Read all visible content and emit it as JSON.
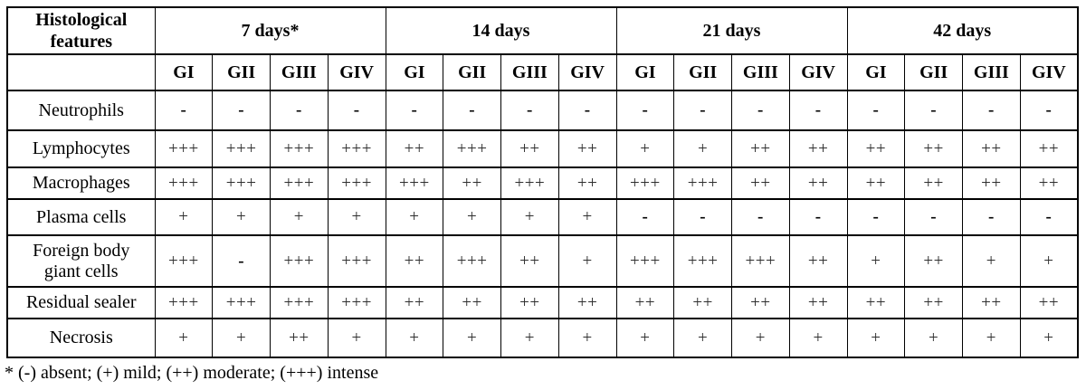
{
  "table": {
    "corner_header": "Histological features",
    "periods": [
      "7 days*",
      "14 days",
      "21 days",
      "42 days"
    ],
    "groups": [
      "GI",
      "GII",
      "GIII",
      "GIV"
    ],
    "rows": [
      {
        "feature": "Neutrophils",
        "values": [
          "-",
          "-",
          "-",
          "-",
          "-",
          "-",
          "-",
          "-",
          "-",
          "-",
          "-",
          "-",
          "-",
          "-",
          "-",
          "-"
        ]
      },
      {
        "feature": "Lymphocytes",
        "values": [
          "+++",
          "+++",
          "+++",
          "+++",
          "++",
          "+++",
          "++",
          "++",
          "+",
          "+",
          "++",
          "++",
          "++",
          "++",
          "++",
          "++"
        ]
      },
      {
        "feature": "Macrophages",
        "values": [
          "+++",
          "+++",
          "+++",
          "+++",
          "+++",
          "++",
          "+++",
          "++",
          "+++",
          "+++",
          "++",
          "++",
          "++",
          "++",
          "++",
          "++"
        ]
      },
      {
        "feature": "Plasma cells",
        "values": [
          "+",
          "+",
          "+",
          "+",
          "+",
          "+",
          "+",
          "+",
          "-",
          "-",
          "-",
          "-",
          "-",
          "-",
          "-",
          "-"
        ]
      },
      {
        "feature": "Foreign body giant cells",
        "values": [
          "+++",
          "-",
          "+++",
          "+++",
          "++",
          "+++",
          "++",
          "+",
          "+++",
          "+++",
          "+++",
          "++",
          "+",
          "++",
          "+",
          "+"
        ]
      },
      {
        "feature": "Residual sealer",
        "values": [
          "+++",
          "+++",
          "+++",
          "+++",
          "++",
          "++",
          "++",
          "++",
          "++",
          "++",
          "++",
          "++",
          "++",
          "++",
          "++",
          "++"
        ]
      },
      {
        "feature": "Necrosis",
        "values": [
          "+",
          "+",
          "++",
          "+",
          "+",
          "+",
          "+",
          "+",
          "+",
          "+",
          "+",
          "+",
          "+",
          "+",
          "+",
          "+"
        ]
      }
    ]
  },
  "footnote": "* (-) absent; (+) mild; (++) moderate; (+++) intense",
  "colors": {
    "background": "#ffffff",
    "text": "#000000",
    "border": "#000000"
  }
}
